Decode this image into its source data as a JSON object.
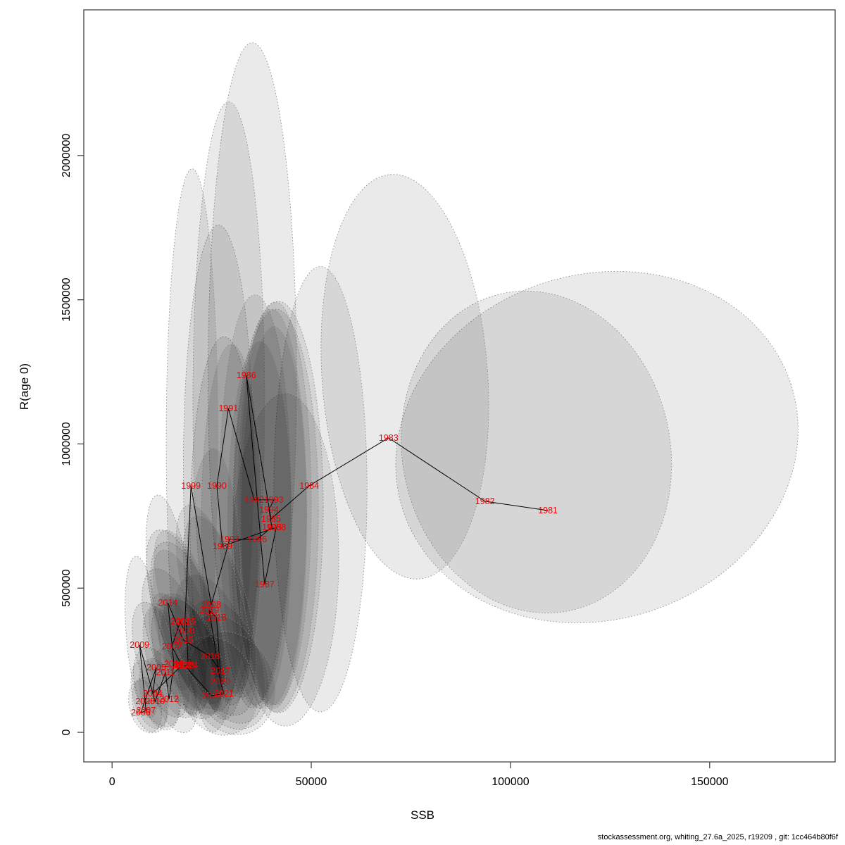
{
  "page": {
    "footer": "stockassessment.org, whiting_27.6a_2025, r19209 , git: 1cc464b80f6f"
  },
  "colors": {
    "background": "#ffffff",
    "frame": "#454545",
    "axis_text": "#000000",
    "year_label": "#ee0000",
    "connect_line": "#000000",
    "ellipse_fill": "#000000",
    "ellipse_fill_opacity": 0.082,
    "ellipse_stroke": "#8a8a8a"
  },
  "chart_data": {
    "type": "scatter",
    "title": "",
    "xlabel": "SSB",
    "ylabel": "R(age 0)",
    "xlim": [
      -7100,
      181500
    ],
    "ylim": [
      -102500,
      2505000
    ],
    "x_ticks": [
      0,
      50000,
      100000,
      150000
    ],
    "y_ticks": [
      0,
      500000,
      1000000,
      1500000,
      2000000
    ],
    "grid": false,
    "legend": "none",
    "description": "Stock-recruitment scatter: points labelled by year, connected chronologically, each with a shaded confidence ellipse (dotted outline).",
    "points": [
      {
        "year": "1981",
        "ssb": 109400,
        "r": 769000,
        "ellipse": {
          "cx": 121700,
          "cy": 989000,
          "rx": 51200,
          "ry": 598000,
          "rot": -18
        }
      },
      {
        "year": "1982",
        "ssb": 93600,
        "r": 801000,
        "ellipse": {
          "cx": 106500,
          "cy": 972000,
          "rx": 33600,
          "ry": 562000,
          "rot": -12
        }
      },
      {
        "year": "1983",
        "ssb": 69400,
        "r": 1021000,
        "ellipse": {
          "cx": 73500,
          "cy": 1233000,
          "rx": 20800,
          "ry": 703000,
          "rot": -4
        }
      },
      {
        "year": "1984",
        "ssb": 49500,
        "r": 855000,
        "ellipse": {
          "cx": 52300,
          "cy": 843000,
          "rx": 11700,
          "ry": 772000,
          "rot": 0
        }
      },
      {
        "year": "1985",
        "ssb": 39900,
        "r": 740000,
        "ellipse": {
          "cx": 41700,
          "cy": 781000,
          "rx": 11300,
          "ry": 713000,
          "rot": 0
        }
      },
      {
        "year": "1986",
        "ssb": 33700,
        "r": 1238000,
        "ellipse": {
          "cx": 35200,
          "cy": 1238000,
          "rx": 11100,
          "ry": 1153000,
          "rot": 0
        }
      },
      {
        "year": "1987",
        "ssb": 38300,
        "r": 513000,
        "ellipse": {
          "cx": 43500,
          "cy": 598000,
          "rx": 13400,
          "ry": 576000,
          "rot": 0
        }
      },
      {
        "year": "1988",
        "ssb": 41200,
        "r": 711000,
        "ellipse": {
          "cx": 41200,
          "cy": 769000,
          "rx": 10600,
          "ry": 698000,
          "rot": 0
        }
      },
      {
        "year": "1989",
        "ssb": 27700,
        "r": 645000,
        "ellipse": {
          "cx": 28100,
          "cy": 708000,
          "rx": 8500,
          "ry": 664000,
          "rot": 0
        }
      },
      {
        "year": "1990",
        "ssb": 26300,
        "r": 855000,
        "ellipse": {
          "cx": 26700,
          "cy": 916000,
          "rx": 8800,
          "ry": 843000,
          "rot": 0
        }
      },
      {
        "year": "1991",
        "ssb": 29200,
        "r": 1123000,
        "ellipse": {
          "cx": 29300,
          "cy": 1148000,
          "rx": 9000,
          "ry": 1038000,
          "rot": 0
        }
      },
      {
        "year": "1992",
        "ssb": 35700,
        "r": 806000,
        "ellipse": {
          "cx": 35900,
          "cy": 806000,
          "rx": 9000,
          "ry": 711000,
          "rot": 0
        }
      },
      {
        "year": "1993",
        "ssb": 40600,
        "r": 806000,
        "ellipse": {
          "cx": 41000,
          "cy": 794000,
          "rx": 9000,
          "ry": 698000,
          "rot": 0
        }
      },
      {
        "year": "1994",
        "ssb": 39400,
        "r": 772000,
        "ellipse": {
          "cx": 40100,
          "cy": 781000,
          "rx": 8700,
          "ry": 686000,
          "rot": 0
        }
      },
      {
        "year": "1995",
        "ssb": 40100,
        "r": 711000,
        "ellipse": {
          "cx": 40600,
          "cy": 745000,
          "rx": 8300,
          "ry": 662000,
          "rot": 0
        }
      },
      {
        "year": "1996",
        "ssb": 36400,
        "r": 669000,
        "ellipse": {
          "cx": 37100,
          "cy": 720000,
          "rx": 8100,
          "ry": 637000,
          "rot": 0
        }
      },
      {
        "year": "1997",
        "ssb": 29500,
        "r": 669000,
        "ellipse": {
          "cx": 30000,
          "cy": 720000,
          "rx": 7600,
          "ry": 625000,
          "rot": 0
        }
      },
      {
        "year": "1998",
        "ssb": 24900,
        "r": 442000,
        "ellipse": {
          "cx": 25400,
          "cy": 493000,
          "rx": 6900,
          "ry": 491000,
          "rot": 0
        }
      },
      {
        "year": "1999",
        "ssb": 19800,
        "r": 855000,
        "ellipse": {
          "cx": 20100,
          "cy": 1006000,
          "rx": 6500,
          "ry": 948000,
          "rot": 0
        }
      },
      {
        "year": "2000",
        "ssb": 18200,
        "r": 352000,
        "ellipse": {
          "cx": 19300,
          "cy": 379000,
          "rx": 7400,
          "ry": 293000,
          "rot": -18
        }
      },
      {
        "year": "2001",
        "ssb": 17100,
        "r": 383000,
        "ellipse": {
          "cx": 18200,
          "cy": 410000,
          "rx": 7100,
          "ry": 305000,
          "rot": -18
        }
      },
      {
        "year": "2002",
        "ssb": 15000,
        "r": 298000,
        "ellipse": {
          "cx": 16100,
          "cy": 322000,
          "rx": 6700,
          "ry": 256000,
          "rot": -18
        }
      },
      {
        "year": "2003",
        "ssb": 17500,
        "r": 232000,
        "ellipse": {
          "cx": 18900,
          "cy": 264000,
          "rx": 7800,
          "ry": 225000,
          "rot": -18
        }
      },
      {
        "year": "2004",
        "ssb": 10200,
        "r": 134000,
        "ellipse": {
          "cx": 11300,
          "cy": 156000,
          "rx": 5300,
          "ry": 142000,
          "rot": -18
        }
      },
      {
        "year": "2005",
        "ssb": 11100,
        "r": 225000,
        "ellipse": {
          "cx": 12200,
          "cy": 252000,
          "rx": 5700,
          "ry": 208000,
          "rot": -18
        }
      },
      {
        "year": "2006",
        "ssb": 7200,
        "r": 68000,
        "ellipse": {
          "cx": 8300,
          "cy": 90000,
          "rx": 3900,
          "ry": 93000,
          "rot": -15
        }
      },
      {
        "year": "2007",
        "ssb": 8500,
        "r": 76000,
        "ellipse": {
          "cx": 9400,
          "cy": 95000,
          "rx": 4100,
          "ry": 98000,
          "rot": -15
        }
      },
      {
        "year": "2008",
        "ssb": 8300,
        "r": 107000,
        "ellipse": {
          "cx": 9400,
          "cy": 132000,
          "rx": 4200,
          "ry": 122000,
          "rot": -15
        }
      },
      {
        "year": "2009",
        "ssb": 6900,
        "r": 303000,
        "ellipse": {
          "cx": 7800,
          "cy": 330000,
          "rx": 4200,
          "ry": 281000,
          "rot": -5
        }
      },
      {
        "year": "2010",
        "ssb": 10800,
        "r": 107000,
        "ellipse": {
          "cx": 11800,
          "cy": 132000,
          "rx": 4600,
          "ry": 127000,
          "rot": -15
        }
      },
      {
        "year": "2011",
        "ssb": 13400,
        "r": 208000,
        "ellipse": {
          "cx": 14500,
          "cy": 242000,
          "rx": 5300,
          "ry": 200000,
          "rot": -18
        }
      },
      {
        "year": "2012",
        "ssb": 14300,
        "r": 115000,
        "ellipse": {
          "cx": 15400,
          "cy": 144000,
          "rx": 5100,
          "ry": 151000,
          "rot": -18
        }
      },
      {
        "year": "2013",
        "ssb": 15500,
        "r": 237000,
        "ellipse": {
          "cx": 16600,
          "cy": 271000,
          "rx": 5700,
          "ry": 220000,
          "rot": -18
        }
      },
      {
        "year": "2014",
        "ssb": 14000,
        "r": 449000,
        "ellipse": {
          "cx": 14800,
          "cy": 484000,
          "rx": 5300,
          "ry": 342000,
          "rot": -8
        }
      },
      {
        "year": "2015",
        "ssb": 17900,
        "r": 320000,
        "ellipse": {
          "cx": 18900,
          "cy": 357000,
          "rx": 6000,
          "ry": 288000,
          "rot": -18
        }
      },
      {
        "year": "2016",
        "ssb": 24600,
        "r": 264000,
        "ellipse": {
          "cx": 25800,
          "cy": 303000,
          "rx": 8500,
          "ry": 256000,
          "rot": -20
        }
      },
      {
        "year": "2017",
        "ssb": 27200,
        "r": 212000,
        "ellipse": {
          "cx": 28400,
          "cy": 247000,
          "rx": 8800,
          "ry": 225000,
          "rot": -20
        }
      },
      {
        "year": "2018",
        "ssb": 26200,
        "r": 398000,
        "ellipse": {
          "cx": 27000,
          "cy": 435000,
          "rx": 7100,
          "ry": 325000,
          "rot": -15
        }
      },
      {
        "year": "2019",
        "ssb": 24400,
        "r": 422000,
        "ellipse": {
          "cx": 25400,
          "cy": 462000,
          "rx": 7100,
          "ry": 337000,
          "rot": -15
        }
      },
      {
        "year": "2020",
        "ssb": 27200,
        "r": 176000,
        "ellipse": {
          "cx": 28800,
          "cy": 210000,
          "rx": 9700,
          "ry": 208000,
          "rot": -22
        }
      },
      {
        "year": "2021",
        "ssb": 28100,
        "r": 134000,
        "ellipse": {
          "cx": 29900,
          "cy": 171000,
          "rx": 10600,
          "ry": 183000,
          "rot": -22
        }
      },
      {
        "year": "2022",
        "ssb": 25000,
        "r": 127000,
        "ellipse": {
          "cx": 26300,
          "cy": 161000,
          "rx": 9700,
          "ry": 176000,
          "rot": -22
        }
      },
      {
        "year": "2023",
        "ssb": 18200,
        "r": 232000,
        "ellipse": {
          "cx": 19600,
          "cy": 266000,
          "rx": 6700,
          "ry": 215000,
          "rot": -20
        }
      },
      {
        "year": "2024",
        "ssb": 19100,
        "r": 232000,
        "ellipse": {
          "cx": 20300,
          "cy": 261000,
          "rx": 6700,
          "ry": 210000,
          "rot": -20
        }
      },
      {
        "year": "2025",
        "ssb": 18600,
        "r": 383000,
        "ellipse": {
          "cx": 19600,
          "cy": 415000,
          "rx": 6400,
          "ry": 298000,
          "rot": -18
        }
      }
    ]
  }
}
